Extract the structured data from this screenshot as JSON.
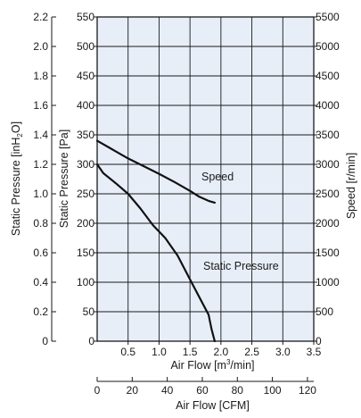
{
  "chart_data": {
    "type": "line",
    "plot_background": "#e8eef8",
    "grid": true,
    "axes": {
      "pressure_pa": {
        "label": "Static Pressure [Pa]",
        "lim": [
          0,
          550
        ],
        "ticks": [
          0,
          50,
          100,
          150,
          200,
          250,
          300,
          350,
          400,
          450,
          500,
          550
        ]
      },
      "pressure_inh2o": {
        "label_main": "Static Pressure [inH",
        "label_sub": "2",
        "label_tail": "O]",
        "lim": [
          0,
          2.2
        ],
        "ticks": [
          "0",
          "0.2",
          "0.4",
          "0.6",
          "0.8",
          "1.0",
          "1.2",
          "1.4",
          "1.6",
          "1.8",
          "2.0",
          "2.2"
        ]
      },
      "speed": {
        "label": "Speed [r/min]",
        "lim": [
          0,
          5500
        ],
        "ticks": [
          0,
          500,
          1000,
          1500,
          2000,
          2500,
          3000,
          3500,
          4000,
          4500,
          5000,
          5500
        ]
      },
      "airflow_m3": {
        "label_main": "Air Flow [m",
        "label_sup": "3",
        "label_tail": "/min]",
        "lim": [
          0,
          3.5
        ],
        "ticks": [
          "0.5",
          "1.0",
          "1.5",
          "2.0",
          "2.5",
          "3.0",
          "3.5"
        ],
        "tick_values": [
          0.5,
          1.0,
          1.5,
          2.0,
          2.5,
          3.0,
          3.5
        ]
      },
      "airflow_cfm": {
        "label": "Air Flow [CFM]",
        "lim": [
          0,
          123.6
        ],
        "ticks": [
          0,
          20,
          40,
          60,
          80,
          100,
          120
        ]
      }
    },
    "series": [
      {
        "name": "Speed",
        "axis": "speed",
        "x": [
          0.0,
          0.25,
          0.5,
          0.75,
          1.0,
          1.25,
          1.5,
          1.65,
          1.8,
          1.9
        ],
        "y": [
          3400,
          3250,
          3100,
          2970,
          2840,
          2700,
          2550,
          2450,
          2380,
          2350
        ]
      },
      {
        "name": "Static Pressure",
        "axis": "pressure_pa",
        "x": [
          0.0,
          0.1,
          0.3,
          0.5,
          0.7,
          0.9,
          1.1,
          1.3,
          1.5,
          1.7,
          1.8,
          1.85,
          1.9
        ],
        "y": [
          300,
          285,
          268,
          250,
          225,
          197,
          175,
          145,
          105,
          65,
          45,
          20,
          0
        ]
      }
    ],
    "annotations": [
      "Speed",
      "Static Pressure"
    ]
  }
}
